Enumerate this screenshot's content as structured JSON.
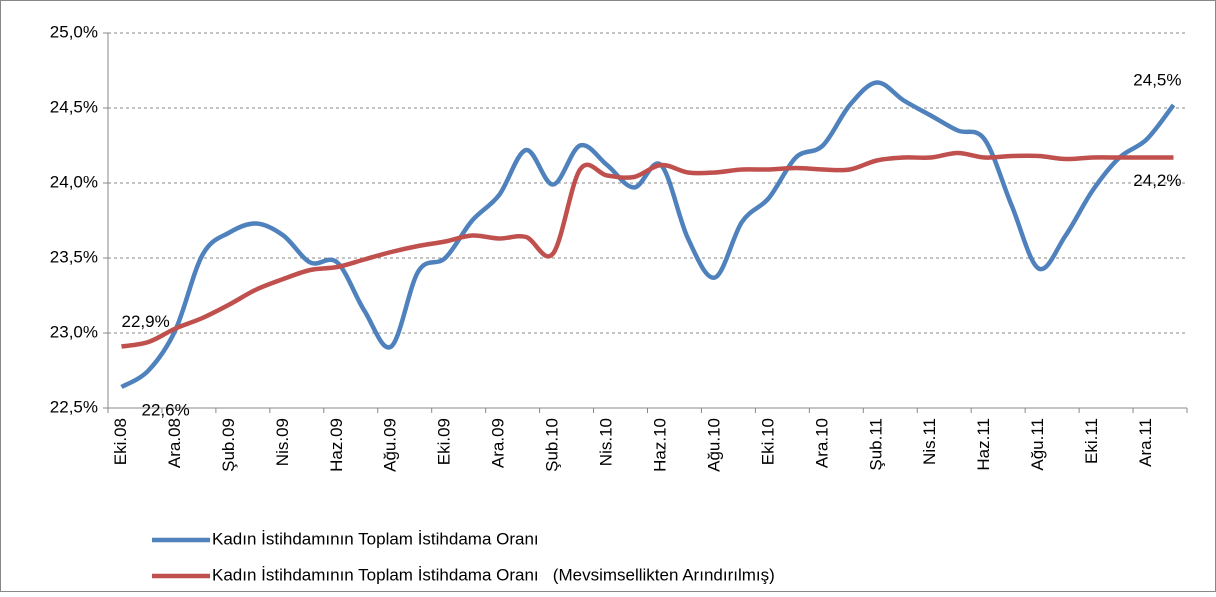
{
  "chart_data": {
    "type": "line",
    "categories": [
      "Eki.08",
      null,
      "Ara.08",
      null,
      "Şub.09",
      null,
      "Nis.09",
      null,
      "Haz.09",
      null,
      "Ağu.09",
      null,
      "Eki.09",
      null,
      "Ara.09",
      null,
      "Şub.10",
      null,
      "Nis.10",
      null,
      "Haz.10",
      null,
      "Ağu.10",
      null,
      "Eki.10",
      null,
      "Ara.10",
      null,
      "Şub.11",
      null,
      "Nis.11",
      null,
      "Haz.11",
      null,
      "Ağu.11",
      null,
      "Eki.11",
      null,
      "Ara.11",
      null
    ],
    "series": [
      {
        "name": "Kadın İstihdamının Toplam İstihdama Oranı",
        "color": "#4f81bd",
        "values": [
          22.64,
          22.75,
          23.02,
          23.52,
          23.67,
          23.73,
          23.65,
          23.47,
          23.47,
          23.15,
          22.91,
          23.41,
          23.5,
          23.75,
          23.92,
          24.22,
          23.99,
          24.25,
          24.12,
          23.97,
          24.12,
          23.63,
          23.37,
          23.74,
          23.9,
          24.17,
          24.25,
          24.52,
          24.67,
          24.55,
          24.45,
          24.35,
          24.29,
          23.85,
          23.43,
          23.65,
          23.95,
          24.17,
          24.29,
          24.52
        ],
        "value_labels": [
          "22,6%",
          null,
          null,
          null,
          null,
          null,
          null,
          null,
          null,
          null,
          null,
          null,
          null,
          null,
          null,
          null,
          null,
          null,
          null,
          null,
          null,
          null,
          null,
          null,
          null,
          null,
          null,
          null,
          null,
          null,
          null,
          null,
          null,
          null,
          null,
          null,
          null,
          null,
          null,
          "24,5%"
        ]
      },
      {
        "name": "Kadın İstihdamının Toplam İstihdama Oranı   (Mevsimsellikten Arındırılmış)",
        "color": "#c0504d",
        "values": [
          22.91,
          22.94,
          23.03,
          23.1,
          23.19,
          23.29,
          23.36,
          23.42,
          23.44,
          23.49,
          23.54,
          23.58,
          23.61,
          23.65,
          23.63,
          23.64,
          23.53,
          24.09,
          24.05,
          24.04,
          24.12,
          24.07,
          24.07,
          24.09,
          24.09,
          24.1,
          24.09,
          24.09,
          24.15,
          24.17,
          24.17,
          24.2,
          24.17,
          24.18,
          24.18,
          24.16,
          24.17,
          24.17,
          24.17,
          24.17
        ],
        "value_labels": [
          "22,9%",
          null,
          null,
          null,
          null,
          null,
          null,
          null,
          null,
          null,
          null,
          null,
          null,
          null,
          null,
          null,
          null,
          null,
          null,
          null,
          null,
          null,
          null,
          null,
          null,
          null,
          null,
          null,
          null,
          null,
          null,
          null,
          null,
          null,
          null,
          null,
          null,
          null,
          null,
          "24,2%"
        ]
      }
    ],
    "ylim": [
      22.5,
      25
    ],
    "yticks": [
      {
        "value": 22.5,
        "label": "22,5%"
      },
      {
        "value": 23,
        "label": "23,0%"
      },
      {
        "value": 23.5,
        "label": "23,5%"
      },
      {
        "value": 24,
        "label": "24,0%"
      },
      {
        "value": 24.5,
        "label": "24,5%"
      },
      {
        "value": 25,
        "label": "25,0%"
      }
    ],
    "grid": true,
    "legend": "bottom"
  }
}
